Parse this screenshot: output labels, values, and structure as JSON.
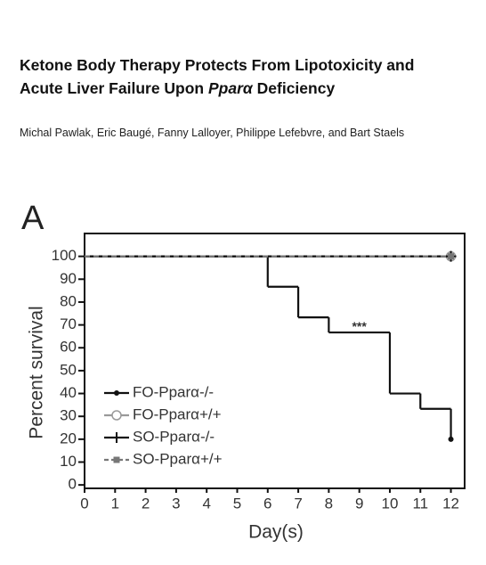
{
  "header": {
    "title_line1": "Ketone Body Therapy Protects From Lipotoxicity and",
    "title_line2": [
      "Acute Liver Failure Upon",
      "Pparα",
      "Deficiency"
    ],
    "authors": "Michal Pawlak, Eric Baugé, Fanny Lalloyer, Philippe Lefebvre, and Bart Staels"
  },
  "chart_data": {
    "type": "step",
    "panel_label": "A",
    "x_label": "Day(s)",
    "y_label": "Percent survival",
    "xlim": [
      0,
      12.45
    ],
    "ylim": [
      -1.5,
      110
    ],
    "xticks": [
      0,
      1,
      2,
      3,
      4,
      5,
      6,
      7,
      8,
      9,
      10,
      11,
      12
    ],
    "yticks": [
      0,
      10,
      20,
      30,
      40,
      50,
      60,
      70,
      80,
      90,
      100
    ],
    "legend": "lower left",
    "annotations": [
      {
        "text": "***",
        "x": 9,
        "y": 69
      }
    ],
    "series": [
      {
        "name": "FO-Pparα-/-",
        "color": "#111111",
        "marker": "dot",
        "dashed": false,
        "x": [
          0,
          6,
          7,
          8,
          10,
          11,
          12
        ],
        "values": [
          100,
          86.7,
          73.3,
          66.7,
          40,
          33.3,
          20
        ]
      },
      {
        "name": "FO-Pparα+/+",
        "color": "#999999",
        "marker": "circle",
        "dashed": false,
        "x": [
          0,
          12
        ],
        "values": [
          100,
          100
        ]
      },
      {
        "name": "SO-Pparα-/-",
        "color": "#111111",
        "marker": "plus",
        "dashed": false,
        "x": [
          0,
          12
        ],
        "values": [
          100,
          100
        ]
      },
      {
        "name": "SO-Pparα+/+",
        "color": "#777777",
        "marker": "square",
        "dashed": true,
        "x": [
          0,
          12
        ],
        "values": [
          100,
          100
        ]
      }
    ]
  }
}
